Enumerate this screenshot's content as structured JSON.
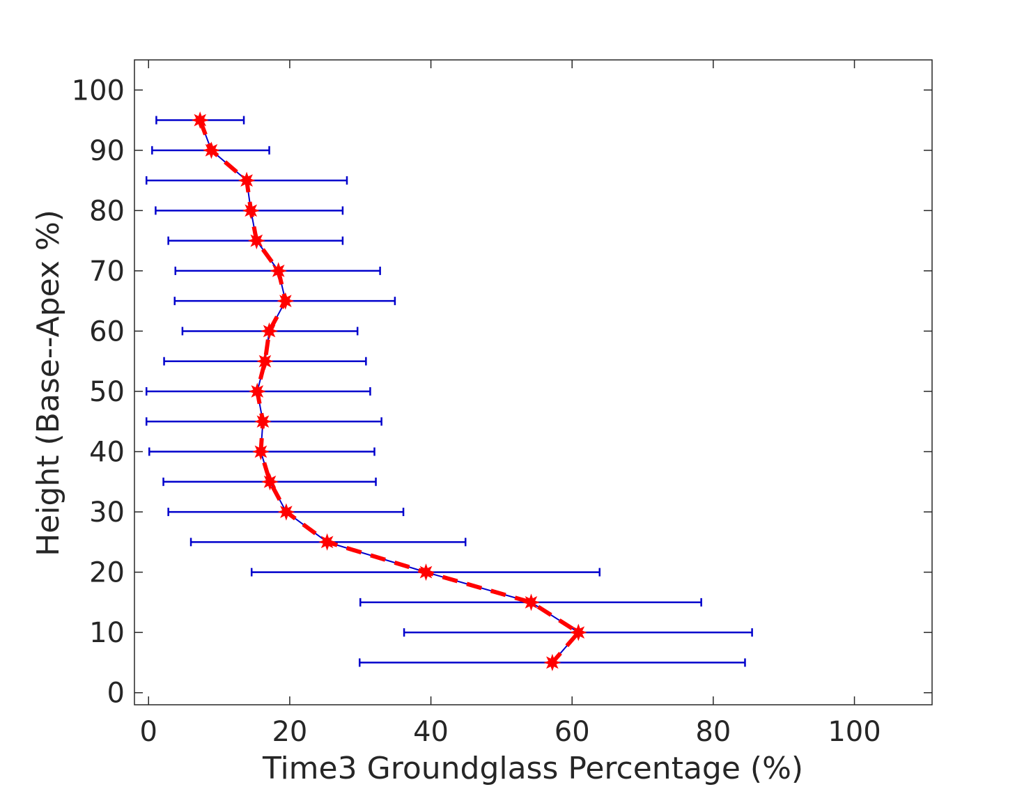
{
  "chart_data": {
    "type": "scatter",
    "title": "",
    "xlabel": "Time3 Groundglass Percentage (%)",
    "ylabel": "Height (Base--Apex %)",
    "xlim": [
      -2,
      111
    ],
    "ylim": [
      -2,
      105
    ],
    "xticks": [
      0,
      20,
      40,
      60,
      80,
      100
    ],
    "yticks": [
      0,
      10,
      20,
      30,
      40,
      50,
      60,
      70,
      80,
      90,
      100
    ],
    "grid": false,
    "legend": "none",
    "colors": {
      "errorbar": "#0000cc",
      "mean_line": "#ff0000",
      "marker": "#ff0000",
      "axis": "#262626"
    },
    "series": [
      {
        "y": [
          95,
          90,
          85,
          80,
          75,
          70,
          65,
          60,
          55,
          50,
          45,
          40,
          35,
          30,
          25,
          20,
          15,
          10,
          5
        ],
        "x": [
          7.3,
          8.9,
          13.9,
          14.5,
          15.3,
          18.4,
          19.4,
          17.1,
          16.5,
          15.4,
          16.2,
          15.9,
          17.2,
          19.5,
          25.3,
          39.3,
          54.2,
          60.9,
          57.2
        ],
        "x_low": [
          1.1,
          0.5,
          -0.3,
          1.0,
          2.8,
          3.8,
          3.7,
          4.8,
          2.2,
          -0.3,
          -0.3,
          0.1,
          2.1,
          2.8,
          6.0,
          14.6,
          30.0,
          36.2,
          29.9
        ],
        "x_high": [
          13.5,
          17.1,
          28.1,
          27.5,
          27.5,
          32.8,
          34.9,
          29.6,
          30.8,
          31.4,
          33.0,
          32.0,
          32.2,
          36.1,
          44.9,
          63.9,
          78.3,
          85.5,
          84.5
        ]
      }
    ]
  }
}
